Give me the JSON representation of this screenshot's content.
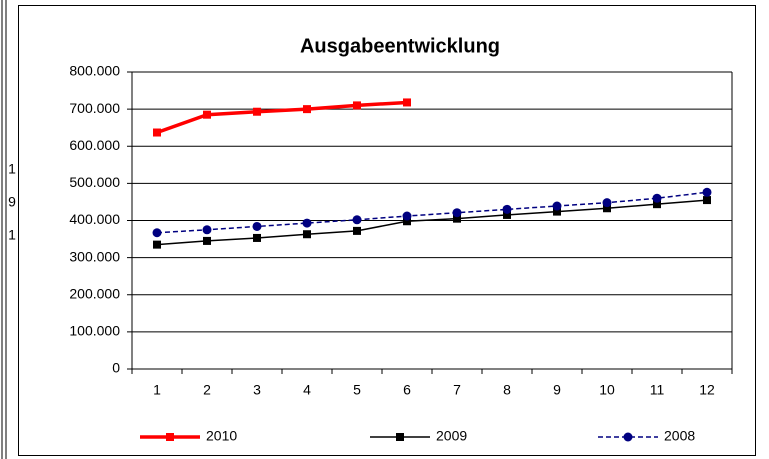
{
  "chart_data": {
    "type": "line",
    "title": "Ausgabeentwicklung",
    "categories": [
      "1",
      "2",
      "3",
      "4",
      "5",
      "6",
      "7",
      "8",
      "9",
      "10",
      "11",
      "12"
    ],
    "series": [
      {
        "name": "2010",
        "color": "#ff0000",
        "dash": false,
        "marker": "square",
        "values": [
          637000,
          685000,
          693000,
          700000,
          710000,
          718000,
          null,
          null,
          null,
          null,
          null,
          null
        ]
      },
      {
        "name": "2009",
        "color": "#000000",
        "dash": false,
        "marker": "square",
        "values": [
          335000,
          345000,
          353000,
          363000,
          372000,
          398000,
          405000,
          415000,
          424000,
          433000,
          444000,
          455000
        ]
      },
      {
        "name": "2008",
        "color": "#000080",
        "dash": true,
        "marker": "circle",
        "values": [
          367000,
          375000,
          384000,
          393000,
          402000,
          412000,
          421000,
          430000,
          439000,
          448000,
          460000,
          476000
        ]
      }
    ],
    "ylim": [
      0,
      800000
    ],
    "yticks": [
      0,
      {
        "value": 100000,
        "label": "100.000"
      },
      {
        "value": 200000,
        "label": "200.000"
      },
      {
        "value": 300000,
        "label": "300.000"
      },
      {
        "value": 400000,
        "label": "400.000"
      },
      {
        "value": 500000,
        "label": "500.000"
      },
      {
        "value": 600000,
        "label": "600.000"
      },
      {
        "value": 700000,
        "label": "700.000"
      },
      {
        "value": 800000,
        "label": "800.000"
      }
    ],
    "grid": true,
    "legend_position": "bottom"
  },
  "background_fragments": [
    "1",
    "9",
    "1"
  ]
}
